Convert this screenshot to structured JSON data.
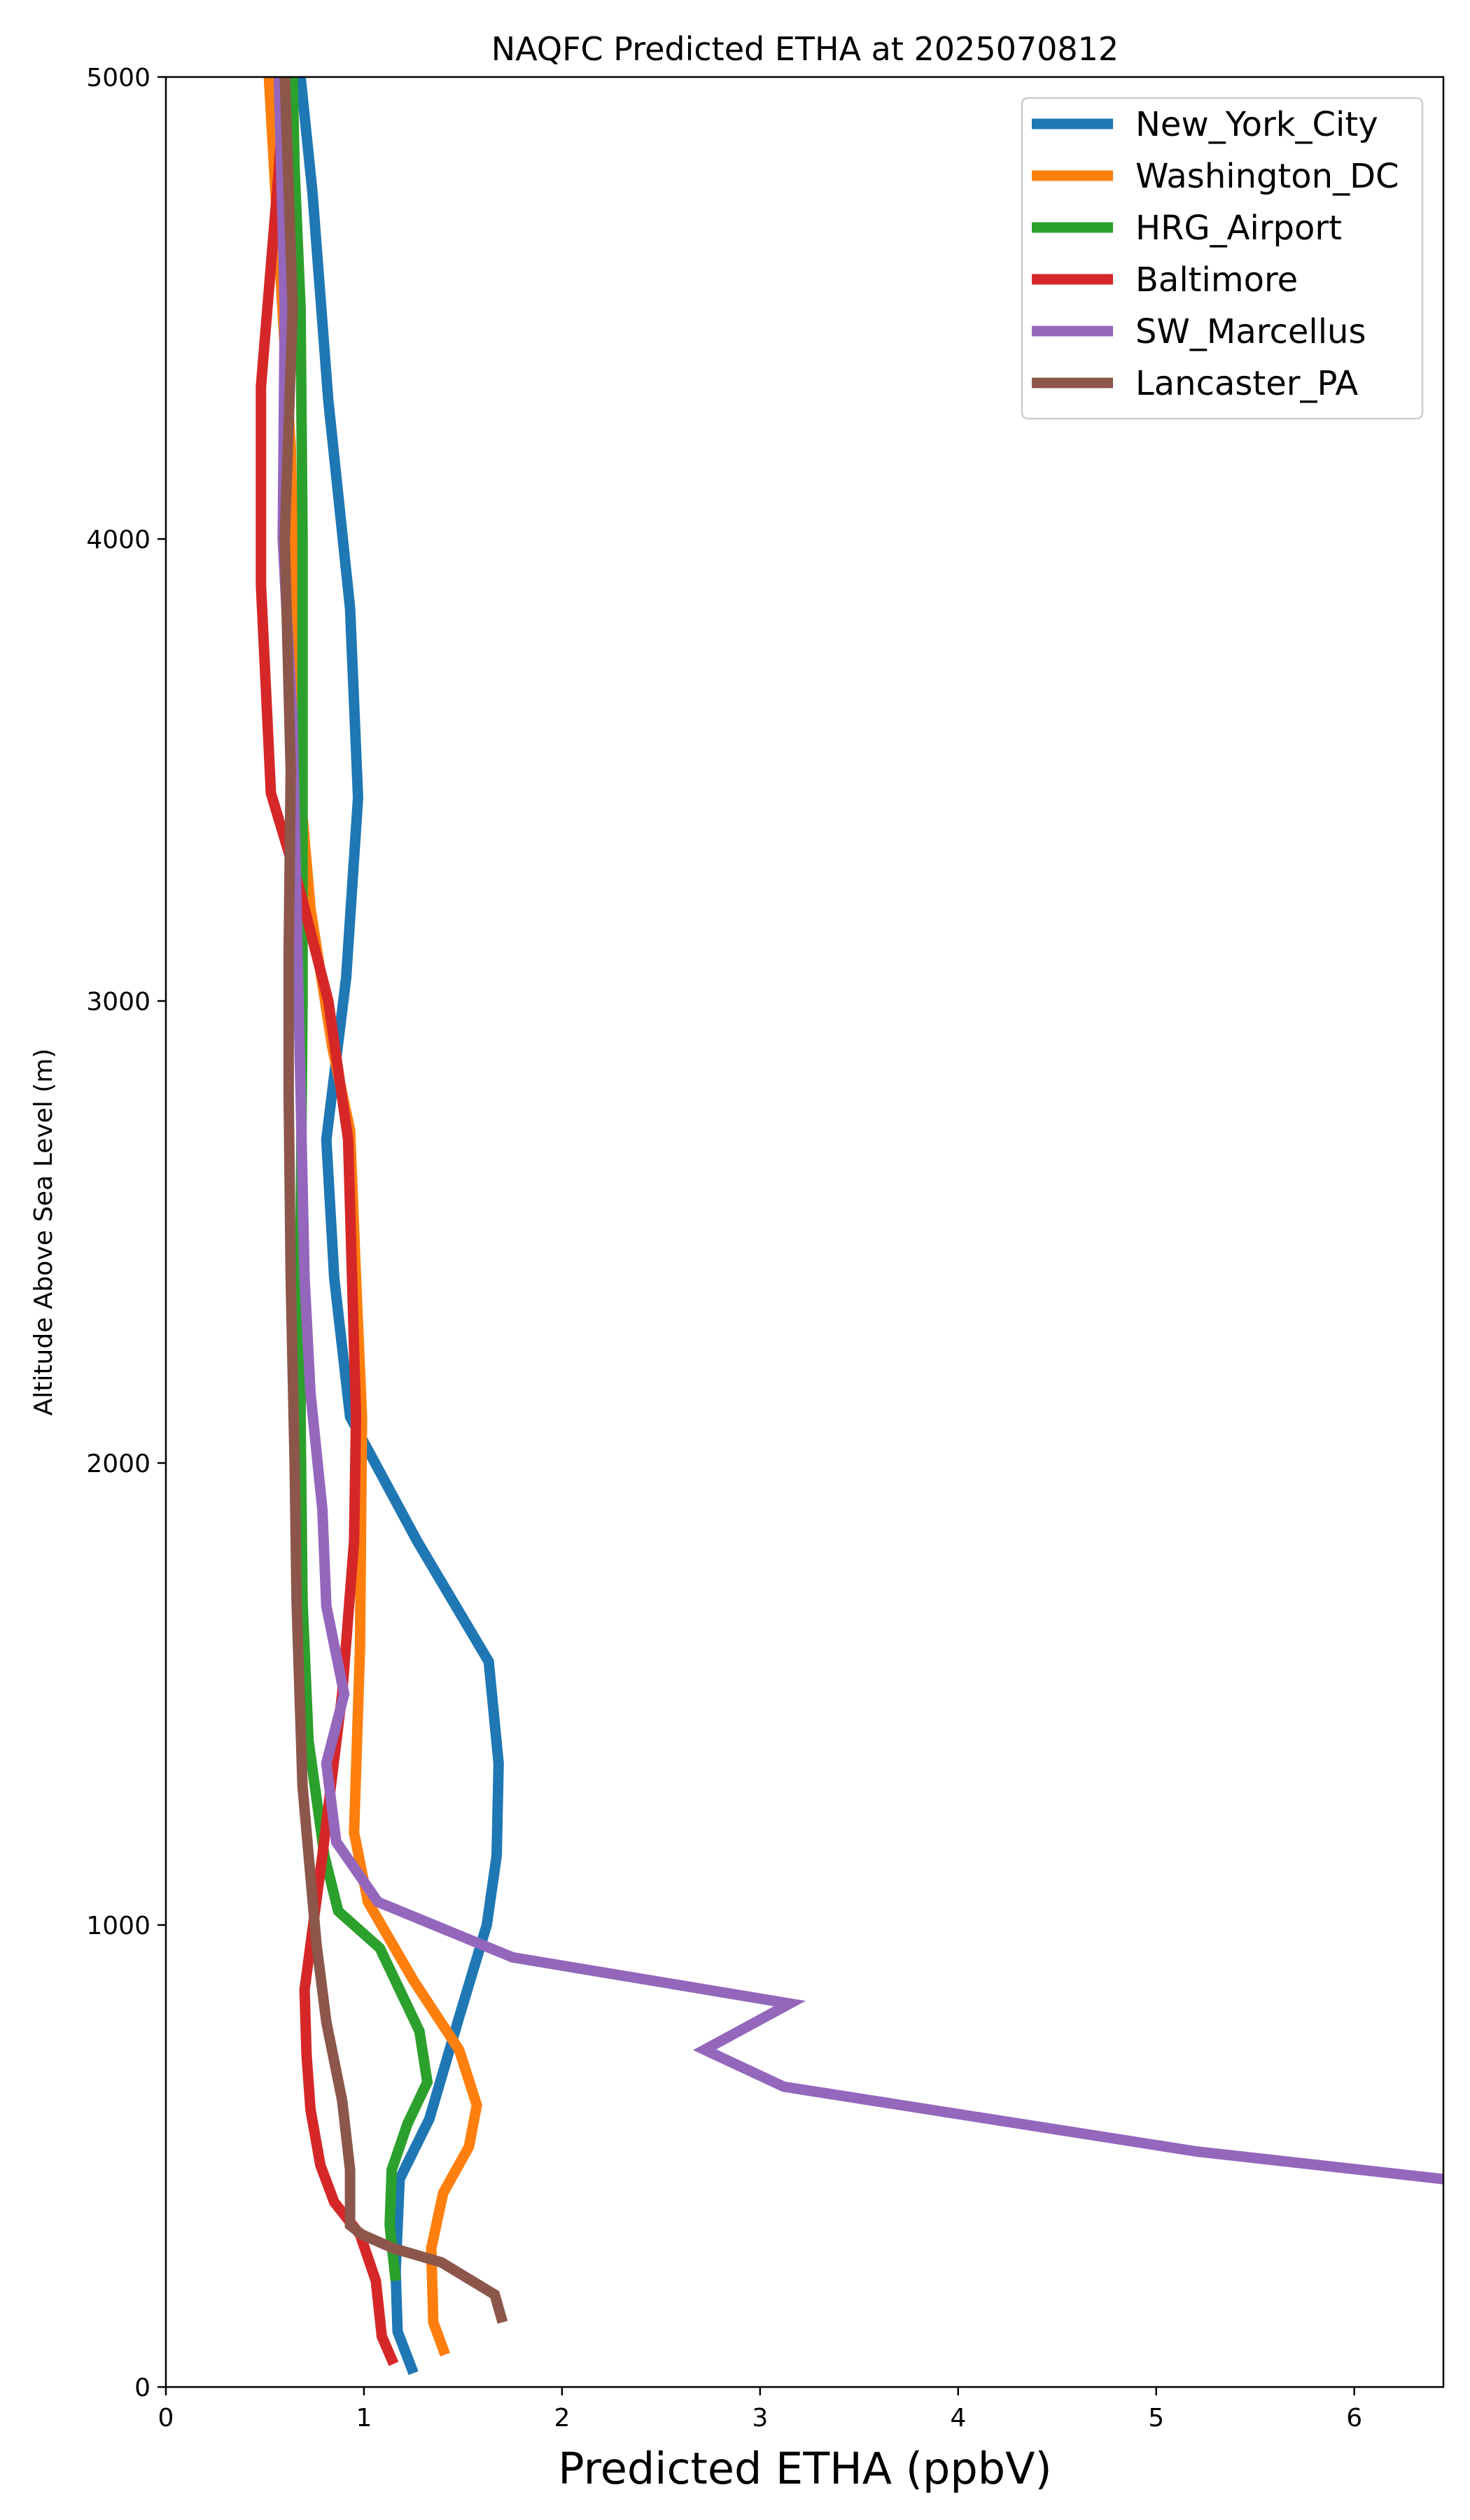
{
  "chart_data": {
    "type": "line",
    "title": "NAQFC Predicted ETHA at 2025070812",
    "xlabel": "Predicted ETHA (ppbV)",
    "ylabel": "Altitude Above Sea Level (m)",
    "xlim": [
      0,
      6.45
    ],
    "ylim": [
      0,
      5000
    ],
    "x_ticks": [
      0,
      1,
      2,
      3,
      4,
      5,
      6
    ],
    "y_ticks": [
      0,
      1000,
      2000,
      3000,
      4000,
      5000
    ],
    "grid": false,
    "legend_position": "top-right",
    "series": [
      {
        "name": "New_York_City",
        "color": "#1f77b4",
        "points": [
          [
            1.25,
            30
          ],
          [
            1.17,
            120
          ],
          [
            1.16,
            250
          ],
          [
            1.18,
            450
          ],
          [
            1.33,
            580
          ],
          [
            1.48,
            800
          ],
          [
            1.62,
            1000
          ],
          [
            1.67,
            1150
          ],
          [
            1.68,
            1350
          ],
          [
            1.63,
            1570
          ],
          [
            1.27,
            1830
          ],
          [
            0.93,
            2100
          ],
          [
            0.85,
            2400
          ],
          [
            0.81,
            2700
          ],
          [
            0.91,
            3050
          ],
          [
            0.97,
            3440
          ],
          [
            0.93,
            3850
          ],
          [
            0.82,
            4300
          ],
          [
            0.74,
            4750
          ],
          [
            0.68,
            5000
          ]
        ]
      },
      {
        "name": "Washington_DC",
        "color": "#ff7f0e",
        "points": [
          [
            1.41,
            70
          ],
          [
            1.35,
            140
          ],
          [
            1.34,
            300
          ],
          [
            1.4,
            420
          ],
          [
            1.53,
            520
          ],
          [
            1.57,
            610
          ],
          [
            1.48,
            730
          ],
          [
            1.25,
            880
          ],
          [
            1.02,
            1050
          ],
          [
            0.95,
            1200
          ],
          [
            0.98,
            1600
          ],
          [
            0.99,
            2100
          ],
          [
            0.96,
            2400
          ],
          [
            0.93,
            2720
          ],
          [
            0.84,
            2900
          ],
          [
            0.73,
            3200
          ],
          [
            0.67,
            3500
          ],
          [
            0.65,
            3800
          ],
          [
            0.63,
            4200
          ],
          [
            0.56,
            4700
          ],
          [
            0.52,
            5000
          ]
        ]
      },
      {
        "name": "HRG_Airport",
        "color": "#2ca02c",
        "points": [
          [
            1.16,
            230
          ],
          [
            1.13,
            350
          ],
          [
            1.14,
            470
          ],
          [
            1.22,
            570
          ],
          [
            1.32,
            660
          ],
          [
            1.28,
            770
          ],
          [
            1.08,
            950
          ],
          [
            0.87,
            1030
          ],
          [
            0.8,
            1150
          ],
          [
            0.72,
            1400
          ],
          [
            0.69,
            1700
          ],
          [
            0.68,
            2100
          ],
          [
            0.68,
            2500
          ],
          [
            0.69,
            3000
          ],
          [
            0.69,
            3500
          ],
          [
            0.69,
            4000
          ],
          [
            0.68,
            4500
          ],
          [
            0.65,
            4800
          ],
          [
            0.64,
            5000
          ]
        ]
      },
      {
        "name": "Baltimore",
        "color": "#d62728",
        "points": [
          [
            1.15,
            50
          ],
          [
            1.09,
            110
          ],
          [
            1.06,
            230
          ],
          [
            0.98,
            330
          ],
          [
            0.85,
            400
          ],
          [
            0.78,
            480
          ],
          [
            0.73,
            600
          ],
          [
            0.71,
            720
          ],
          [
            0.7,
            860
          ],
          [
            0.79,
            1150
          ],
          [
            0.89,
            1500
          ],
          [
            0.95,
            1830
          ],
          [
            0.96,
            2100
          ],
          [
            0.92,
            2700
          ],
          [
            0.82,
            3000
          ],
          [
            0.67,
            3250
          ],
          [
            0.53,
            3450
          ],
          [
            0.48,
            3900
          ],
          [
            0.48,
            4330
          ],
          [
            0.57,
            4800
          ],
          [
            0.6,
            5000
          ]
        ]
      },
      {
        "name": "SW_Marcellus",
        "color": "#9467bd",
        "points": [
          [
            6.45,
            450
          ],
          [
            5.2,
            510
          ],
          [
            3.12,
            650
          ],
          [
            2.72,
            730
          ],
          [
            3.15,
            830
          ],
          [
            1.75,
            930
          ],
          [
            1.07,
            1050
          ],
          [
            0.86,
            1180
          ],
          [
            0.81,
            1350
          ],
          [
            0.9,
            1500
          ],
          [
            0.81,
            1690
          ],
          [
            0.79,
            1900
          ],
          [
            0.73,
            2150
          ],
          [
            0.7,
            2400
          ],
          [
            0.68,
            2800
          ],
          [
            0.66,
            3200
          ],
          [
            0.64,
            3600
          ],
          [
            0.59,
            4000
          ],
          [
            0.6,
            4500
          ],
          [
            0.57,
            5000
          ]
        ]
      },
      {
        "name": "Lancaster_PA",
        "color": "#8c564b",
        "points": [
          [
            1.7,
            140
          ],
          [
            1.66,
            200
          ],
          [
            1.39,
            270
          ],
          [
            1.15,
            300
          ],
          [
            0.99,
            330
          ],
          [
            0.93,
            350
          ],
          [
            0.93,
            470
          ],
          [
            0.89,
            620
          ],
          [
            0.81,
            790
          ],
          [
            0.76,
            960
          ],
          [
            0.69,
            1300
          ],
          [
            0.66,
            1700
          ],
          [
            0.65,
            2000
          ],
          [
            0.63,
            2400
          ],
          [
            0.62,
            2800
          ],
          [
            0.62,
            3100
          ],
          [
            0.63,
            3500
          ],
          [
            0.6,
            4000
          ],
          [
            0.64,
            4500
          ],
          [
            0.6,
            5000
          ]
        ]
      }
    ]
  }
}
